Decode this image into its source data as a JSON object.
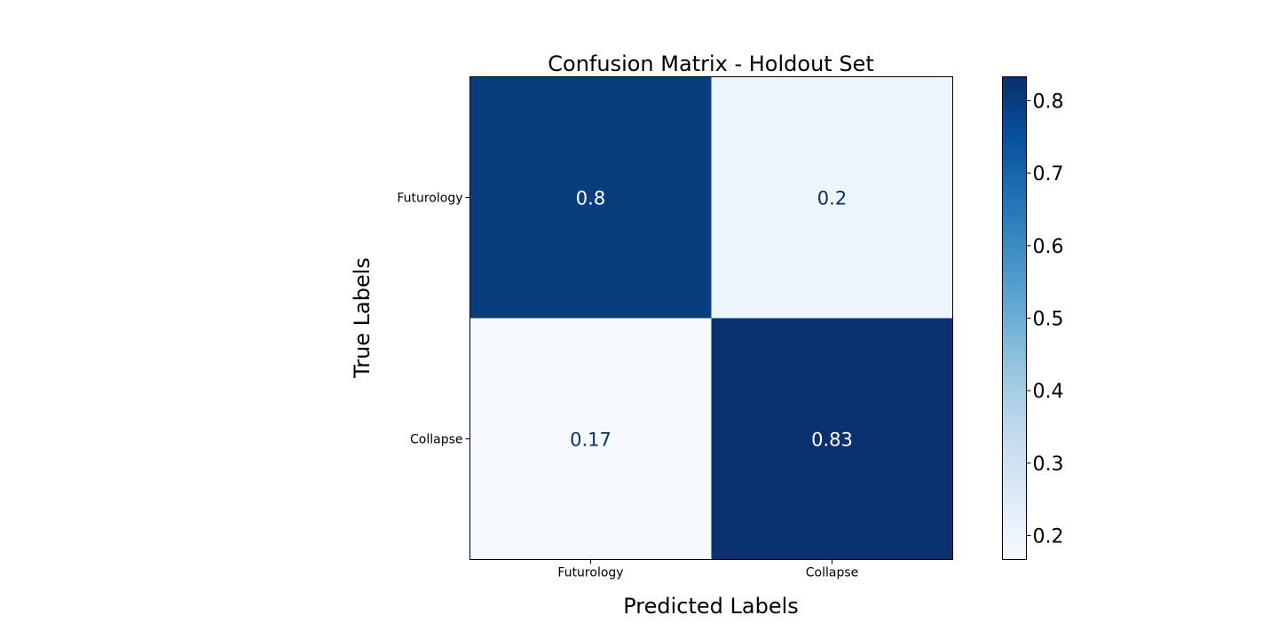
{
  "chart_data": {
    "type": "heatmap",
    "title": "Confusion Matrix - Holdout Set",
    "xlabel": "Predicted Labels",
    "ylabel": "True Labels",
    "x_categories": [
      "Futurology",
      "Collapse"
    ],
    "y_categories": [
      "Futurology",
      "Collapse"
    ],
    "values": [
      [
        0.8,
        0.2
      ],
      [
        0.17,
        0.83
      ]
    ],
    "cell_labels": [
      [
        "0.8",
        "0.2"
      ],
      [
        "0.17",
        "0.83"
      ]
    ],
    "colormap": "Blues",
    "colorbar": {
      "range": [
        0.167,
        0.833
      ],
      "ticks": [
        0.2,
        0.3,
        0.4,
        0.5,
        0.6,
        0.7,
        0.8
      ],
      "tick_labels": [
        "0.2",
        "0.3",
        "0.4",
        "0.5",
        "0.6",
        "0.7",
        "0.8"
      ]
    },
    "grid": false
  }
}
